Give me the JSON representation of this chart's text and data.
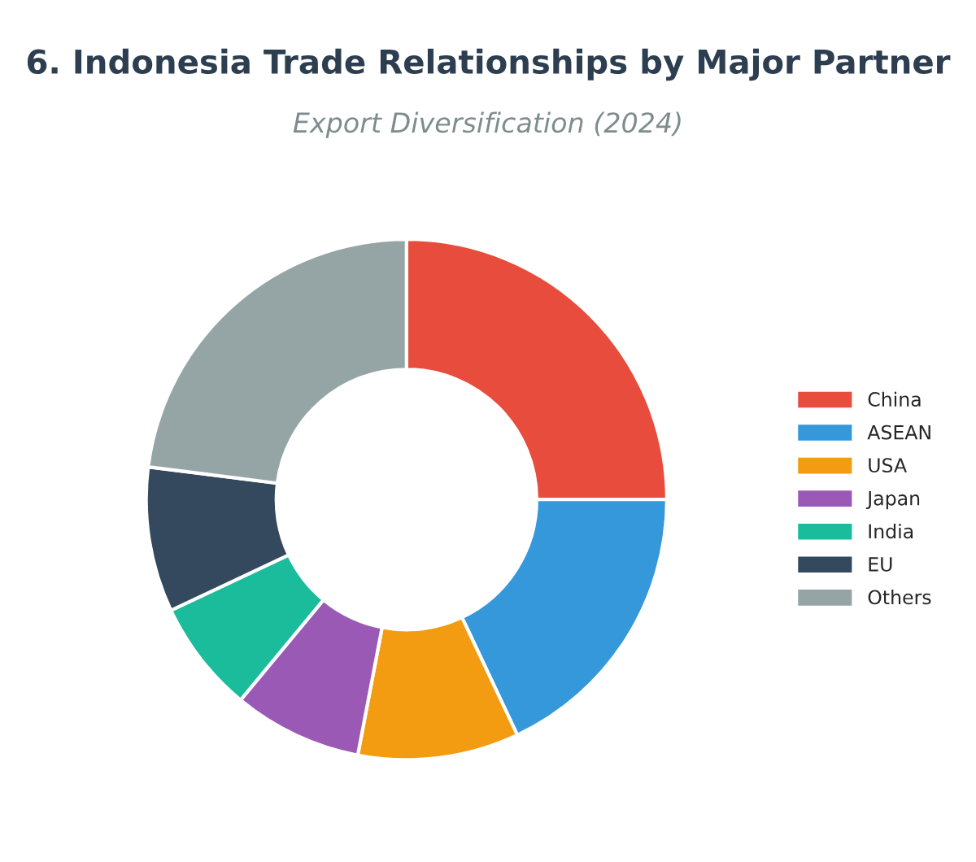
{
  "chart_data": {
    "type": "donut",
    "title": "6. Indonesia Trade Relationships by Major Partner",
    "subtitle": "Export Diversification (2024)",
    "categories": [
      "China",
      "ASEAN",
      "USA",
      "Japan",
      "India",
      "EU",
      "Others"
    ],
    "values": [
      25,
      18,
      10,
      8,
      7,
      9,
      23
    ],
    "colors": [
      "#e74c3c",
      "#3498db",
      "#f39c12",
      "#9b59b6",
      "#1abc9c",
      "#34495e",
      "#95a5a6"
    ],
    "legend": "right"
  }
}
